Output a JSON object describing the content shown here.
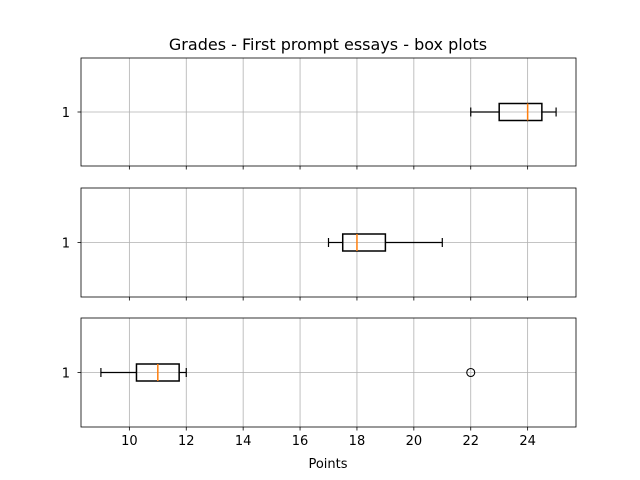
{
  "chart_data": {
    "type": "boxplot",
    "title": "Grades - First prompt essays - box plots",
    "xlabel": "Points",
    "xlim": [
      8.3,
      25.7
    ],
    "xticks": [
      10,
      12,
      14,
      16,
      18,
      20,
      22,
      24
    ],
    "grid": true,
    "orientation": "horizontal",
    "sharex": true,
    "panels": [
      {
        "ytick_label": "1",
        "box": {
          "whisker_low": 22,
          "q1": 23,
          "median": 24,
          "q3": 24.5,
          "whisker_high": 25
        },
        "outliers": []
      },
      {
        "ytick_label": "1",
        "box": {
          "whisker_low": 17,
          "q1": 17.5,
          "median": 18,
          "q3": 19,
          "whisker_high": 21
        },
        "outliers": []
      },
      {
        "ytick_label": "1",
        "box": {
          "whisker_low": 9,
          "q1": 10.25,
          "median": 11,
          "q3": 11.75,
          "whisker_high": 12
        },
        "outliers": [
          22
        ]
      }
    ],
    "colors": {
      "box": "#000000",
      "median": "#ff7f0e",
      "grid": "#b0b0b0",
      "outlier": "#000000"
    }
  }
}
